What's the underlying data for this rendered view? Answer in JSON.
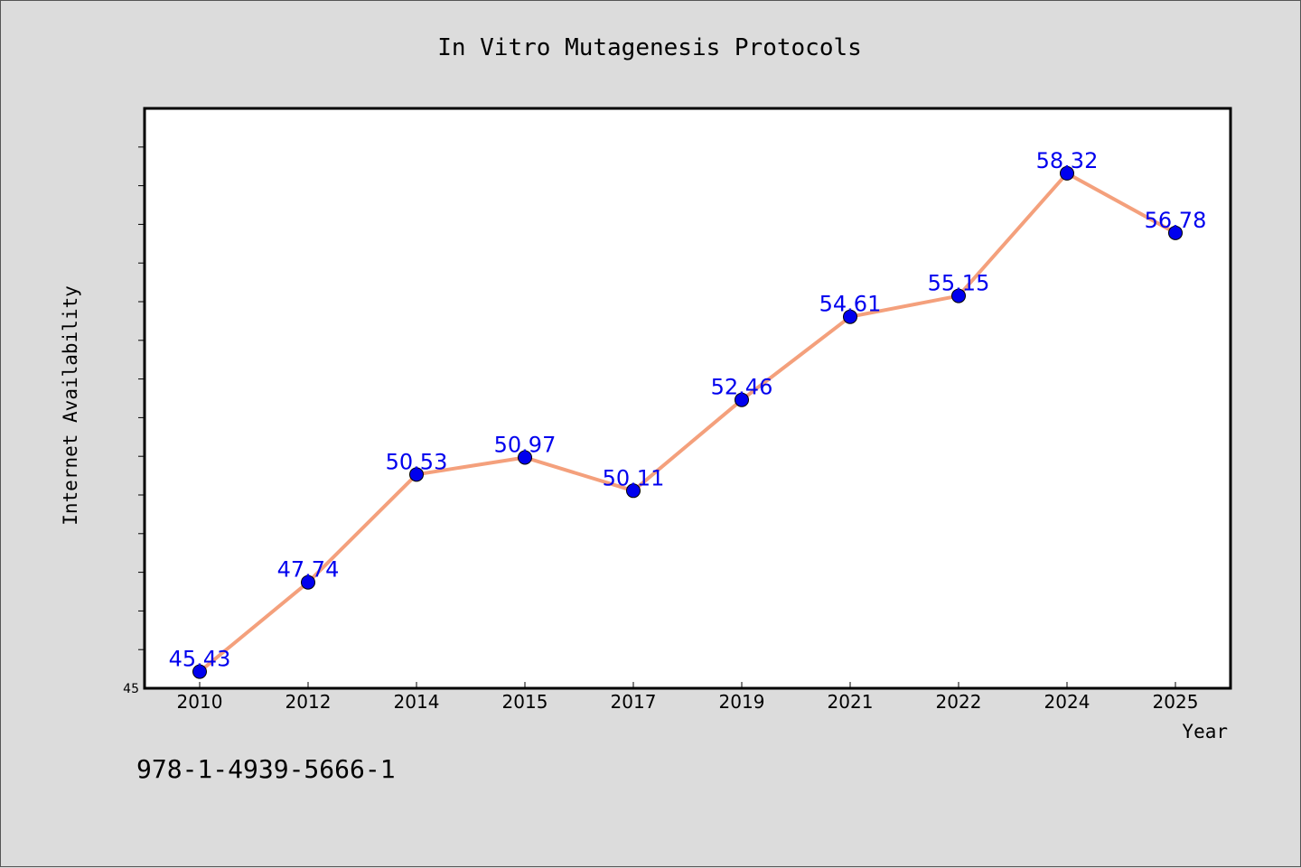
{
  "chart_data": {
    "type": "line",
    "title": "In Vitro Mutagenesis Protocols",
    "xlabel": "Year",
    "ylabel": "Internet Availability",
    "categories": [
      "2010",
      "2012",
      "2014",
      "2015",
      "2017",
      "2019",
      "2021",
      "2022",
      "2024",
      "2025"
    ],
    "series": [
      {
        "values": [
          45.43,
          47.74,
          50.53,
          50.97,
          50.11,
          52.46,
          54.61,
          55.15,
          58.32,
          56.78
        ],
        "labels": [
          "45.43",
          "47.74",
          "50.53",
          "50.97",
          "50.11",
          "52.46",
          "54.61",
          "55.15",
          "58.32",
          "56.78"
        ]
      }
    ],
    "ylim": [
      45,
      60
    ],
    "y_tick_labels": [
      "45"
    ],
    "line_color": "#f4a07c",
    "marker_color": "#0000ee",
    "label_color": "#0000ee",
    "grid": false
  },
  "footer": {
    "isbn": "978-1-4939-5666-1"
  }
}
